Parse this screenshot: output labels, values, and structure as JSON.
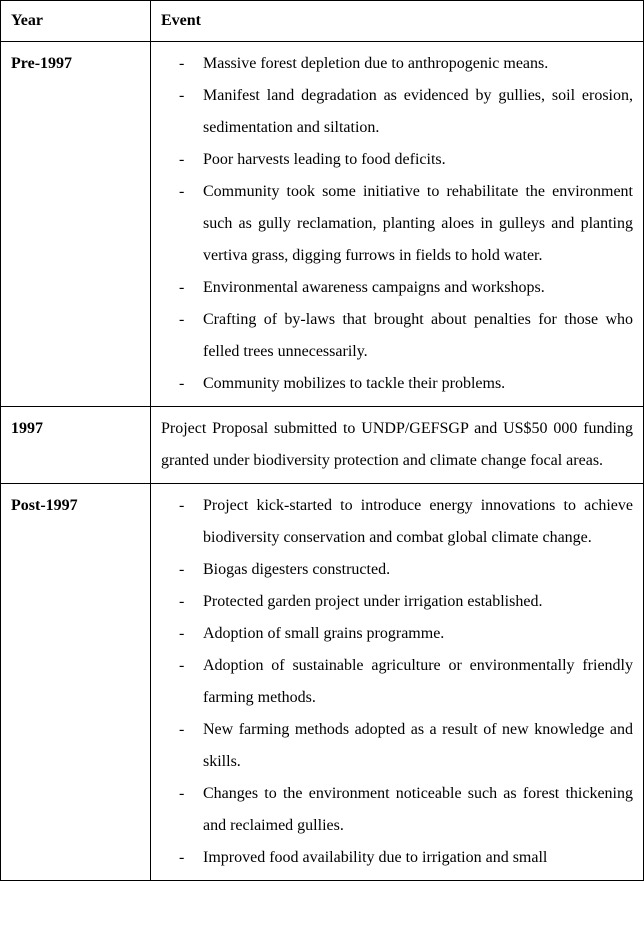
{
  "header": {
    "year_col": "Year",
    "event_col": "Event"
  },
  "rows": {
    "r0": {
      "year": "Pre-1997",
      "items": {
        "i0": "Massive forest depletion due to anthropogenic means.",
        "i1": "Manifest land degradation as evidenced by gullies, soil erosion, sedimentation and siltation.",
        "i2": "Poor harvests leading to food deficits.",
        "i3": "Community took some initiative to rehabilitate the environment such as gully reclamation, planting aloes in gulleys and planting vertiva grass, digging furrows in fields to hold water.",
        "i4": "Environmental awareness campaigns and workshops.",
        "i5": "Crafting of by-laws that brought about penalties for those who felled trees unnecessarily.",
        "i6": "Community mobilizes to tackle their problems."
      }
    },
    "r1": {
      "year": "1997",
      "text": "Project Proposal submitted to UNDP/GEFSGP and US$50 000 funding granted under biodiversity protection and climate change focal areas."
    },
    "r2": {
      "year": "Post-1997",
      "items": {
        "i0": "Project kick-started to introduce energy innovations to achieve biodiversity conservation and combat global climate change.",
        "i1": "Biogas digesters constructed.",
        "i2": "Protected garden project under irrigation established.",
        "i3": "Adoption of small grains programme.",
        "i4": "Adoption of sustainable agriculture or environmentally friendly farming methods.",
        "i5": "New farming methods adopted as a result of new knowledge and skills.",
        "i6": "Changes to the environment noticeable such as forest thickening and reclaimed gullies.",
        "i7": "Improved food availability due to irrigation and small"
      }
    }
  }
}
